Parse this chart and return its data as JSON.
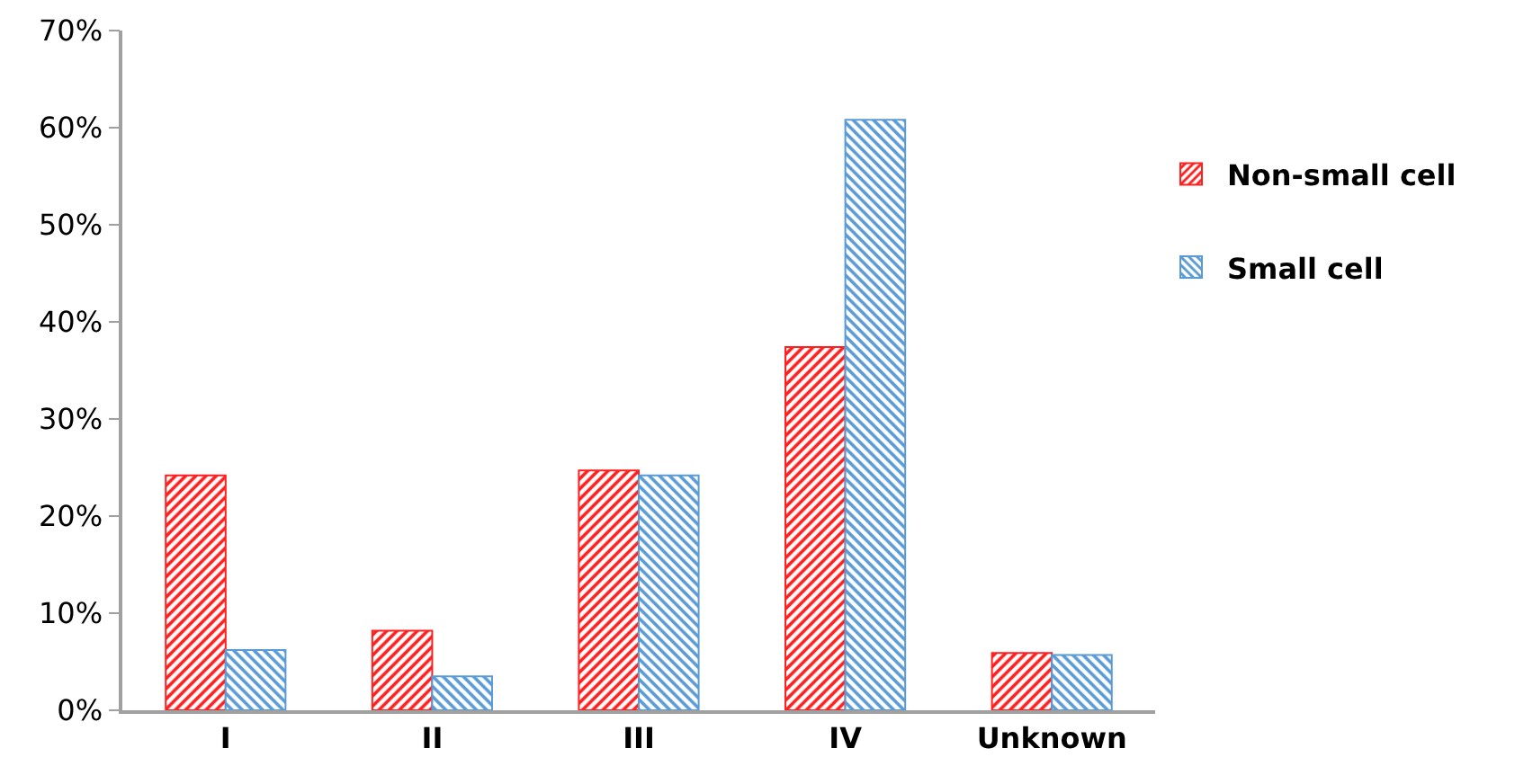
{
  "chart_data": {
    "type": "bar",
    "categories": [
      "I",
      "II",
      "III",
      "IV",
      "Unknown"
    ],
    "series": [
      {
        "name": "Non-small cell",
        "color": "#ff2020",
        "values": [
          24.2,
          8.2,
          24.7,
          37.4,
          5.9
        ]
      },
      {
        "name": "Small cell",
        "color": "#5b9bd5",
        "values": [
          6.2,
          3.5,
          24.2,
          60.8,
          5.7
        ]
      }
    ],
    "ylim": [
      0,
      70
    ],
    "yticks": [
      {
        "value": 0,
        "label": "0%"
      },
      {
        "value": 10,
        "label": "10%"
      },
      {
        "value": 20,
        "label": "20%"
      },
      {
        "value": 30,
        "label": "30%"
      },
      {
        "value": 40,
        "label": "40%"
      },
      {
        "value": 50,
        "label": "50%"
      },
      {
        "value": 60,
        "label": "60%"
      },
      {
        "value": 70,
        "label": "70%"
      }
    ],
    "grid": false,
    "legend": "right"
  }
}
